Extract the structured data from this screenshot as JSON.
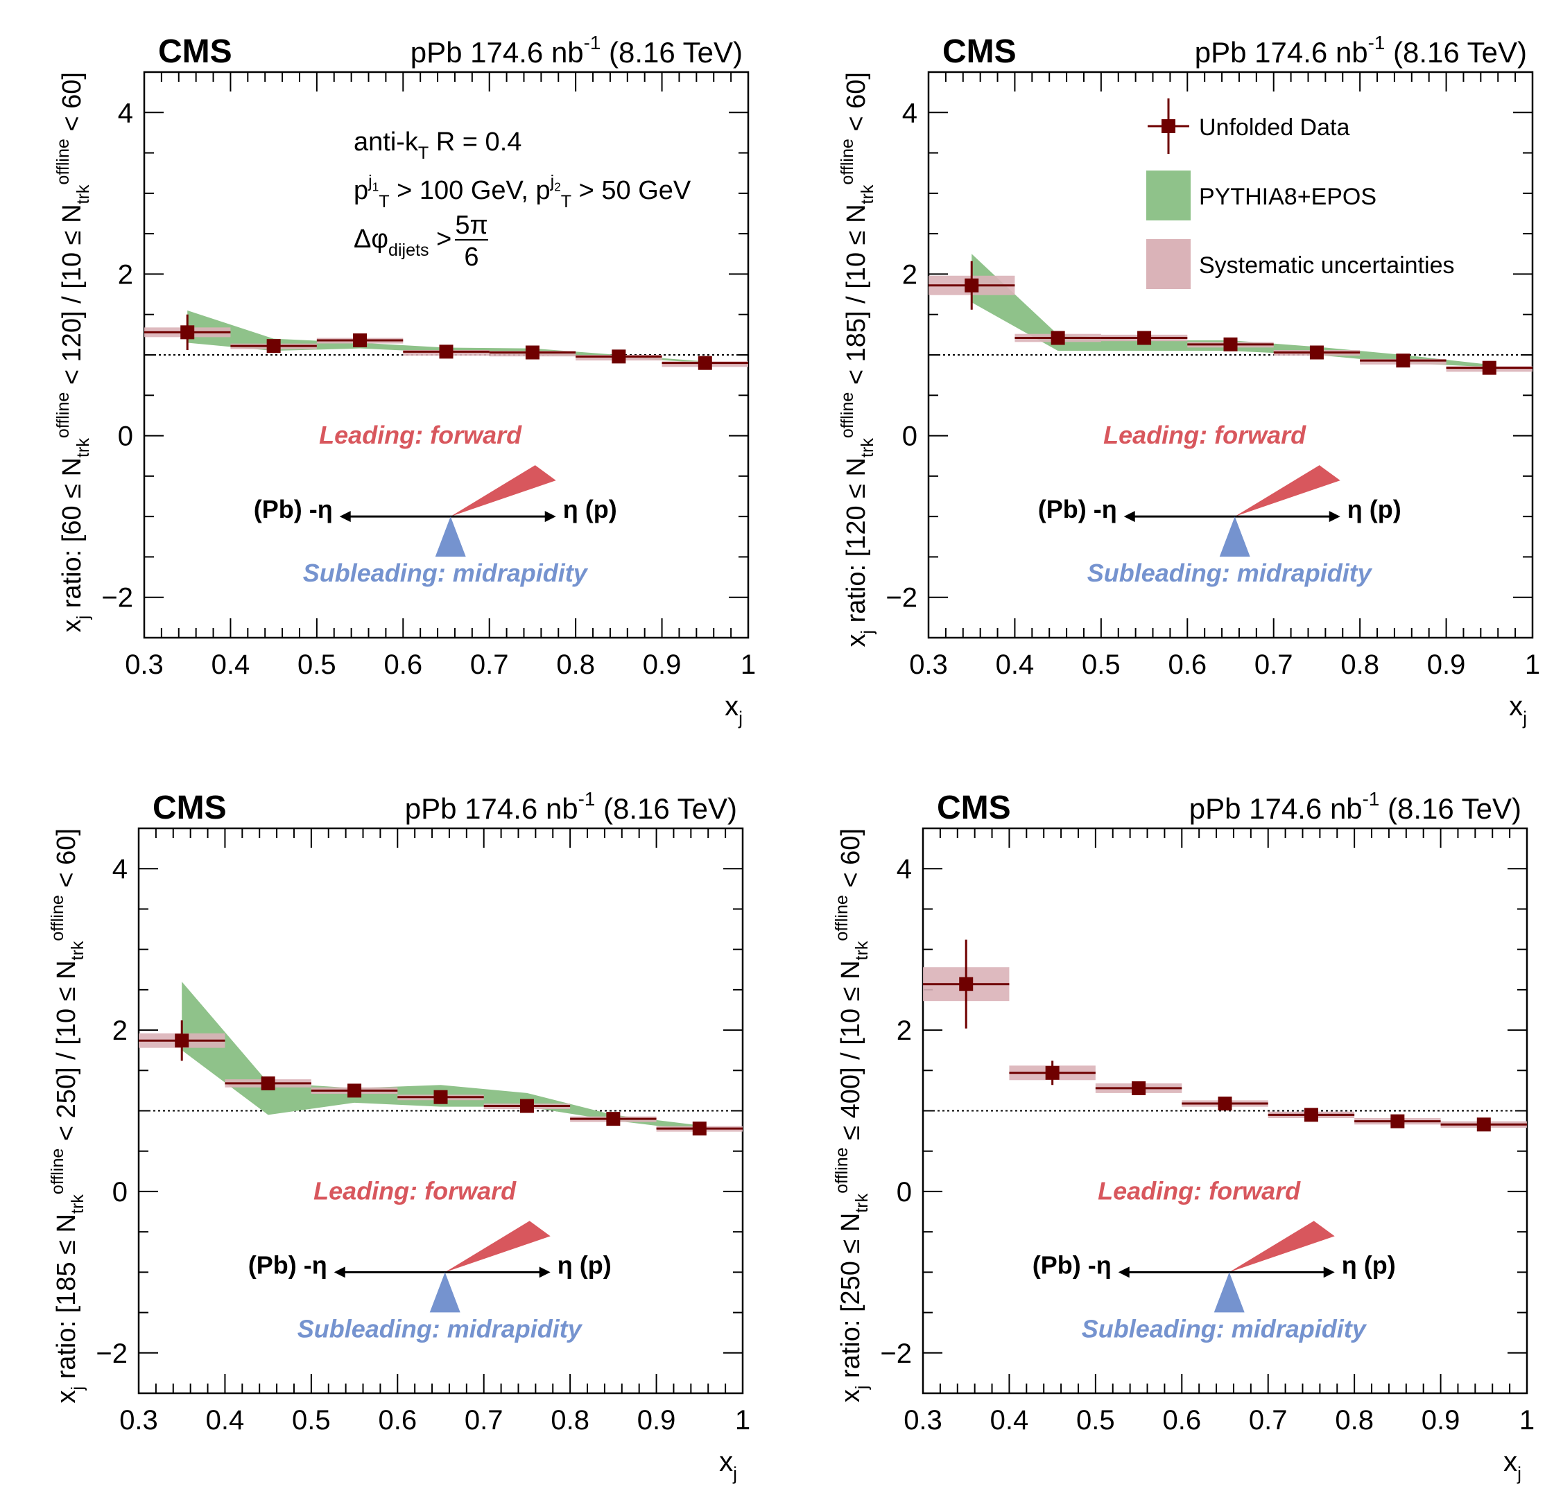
{
  "common": {
    "experiment": "CMS",
    "lumi_text": "pPb 174.6 nb",
    "lumi_exp": "-1",
    "energy": "(8.16 TeV)",
    "xlabel": "x",
    "xlabel_sub": "j",
    "ylabel_prefix": "x",
    "ylabel_prefix_sub": "j",
    "ylabel_ratio": " ratio: [",
    "ylabel_denom": " / [10 ≤ N",
    "ylabel_sub": "trk",
    "ylabel_sup": "offline",
    "ylabel_close": " < 60]",
    "leading_label": "Leading: forward",
    "subleading_label": "Subleading: midrapidity",
    "left_direction": "(Pb) -η",
    "right_direction": "η (p)",
    "jet_text": {
      "algo": "anti-k",
      "algo_sub": "T",
      "algo_rest": " R = 0.4",
      "pt_p": "p",
      "pt_sub": "T",
      "pt_sup1": "j",
      "pt_sup1_sub": "1",
      "pt_rest1": " > 100 GeV, ",
      "pt_sup2": "j",
      "pt_sup2_sub": "2",
      "pt_rest2": " > 50 GeV",
      "dphi": "Δφ",
      "dphi_sub": "dijets",
      "dphi_gt": " >",
      "frac_num": "5π",
      "frac_den": "6"
    },
    "legend": [
      {
        "label": "Unfolded Data",
        "kind": "data"
      },
      {
        "label": "PYTHIA8+EPOS",
        "kind": "model"
      },
      {
        "label": "Systematic uncertainties",
        "kind": "syst"
      }
    ],
    "colors": {
      "data": "#6f0000",
      "model": "#8fc28a",
      "syst": "#dab3b8",
      "leading": "#d8575d",
      "subleading": "#7593cf"
    }
  },
  "chart_data": [
    {
      "type": "scatter",
      "mult_label": "60 ≤ N",
      "mult_close": " < 120]",
      "x": [
        0.35,
        0.45,
        0.55,
        0.65,
        0.75,
        0.85,
        0.95
      ],
      "y": [
        1.28,
        1.11,
        1.18,
        1.04,
        1.03,
        0.98,
        0.9
      ],
      "stat_err": [
        0.22,
        0.05,
        0.04,
        0.03,
        0.03,
        0.03,
        0.03
      ],
      "syst_err": [
        0.06,
        0.03,
        0.03,
        0.02,
        0.02,
        0.02,
        0.02
      ],
      "model_lo": [
        1.15,
        1.05,
        1.08,
        1.03,
        1.0,
        0.97,
        0.9
      ],
      "model_hi": [
        1.55,
        1.2,
        1.15,
        1.09,
        1.08,
        1.0,
        0.92
      ],
      "xlim": [
        0.3,
        1.0
      ],
      "ylim": [
        -2.5,
        4.5
      ],
      "xticks": [
        0.3,
        0.4,
        0.5,
        0.6,
        0.7,
        0.8,
        0.9,
        1.0
      ],
      "xtick_labels": [
        "0.3",
        "0.4",
        "0.5",
        "0.6",
        "0.7",
        "0.8",
        "0.9",
        "1"
      ],
      "yticks": [
        -2,
        0,
        2,
        4
      ],
      "ytick_labels": [
        "−2",
        "0",
        "2",
        "4"
      ],
      "reference_line": 1.0,
      "show_jet_text": true,
      "show_legend": false
    },
    {
      "type": "scatter",
      "mult_label": "120 ≤ N",
      "mult_close": " < 185]",
      "x": [
        0.35,
        0.45,
        0.55,
        0.65,
        0.75,
        0.85,
        0.95
      ],
      "y": [
        1.86,
        1.21,
        1.21,
        1.13,
        1.03,
        0.93,
        0.84
      ],
      "stat_err": [
        0.3,
        0.06,
        0.05,
        0.04,
        0.03,
        0.03,
        0.03
      ],
      "syst_err": [
        0.12,
        0.05,
        0.04,
        0.03,
        0.03,
        0.02,
        0.02
      ],
      "model_lo": [
        1.65,
        1.05,
        1.05,
        1.05,
        1.0,
        0.9,
        0.85
      ],
      "model_hi": [
        2.25,
        1.25,
        1.18,
        1.18,
        1.1,
        1.0,
        0.88
      ],
      "xlim": [
        0.3,
        1.0
      ],
      "ylim": [
        -2.5,
        4.5
      ],
      "xticks": [
        0.3,
        0.4,
        0.5,
        0.6,
        0.7,
        0.8,
        0.9,
        1.0
      ],
      "xtick_labels": [
        "0.3",
        "0.4",
        "0.5",
        "0.6",
        "0.7",
        "0.8",
        "0.9",
        "1"
      ],
      "yticks": [
        -2,
        0,
        2,
        4
      ],
      "ytick_labels": [
        "−2",
        "0",
        "2",
        "4"
      ],
      "reference_line": 1.0,
      "show_jet_text": false,
      "show_legend": true
    },
    {
      "type": "scatter",
      "mult_label": "185 ≤ N",
      "mult_close": " < 250]",
      "x": [
        0.35,
        0.45,
        0.55,
        0.65,
        0.75,
        0.85,
        0.95
      ],
      "y": [
        1.87,
        1.34,
        1.25,
        1.17,
        1.06,
        0.9,
        0.78
      ],
      "stat_err": [
        0.25,
        0.06,
        0.05,
        0.05,
        0.04,
        0.04,
        0.03
      ],
      "syst_err": [
        0.09,
        0.05,
        0.04,
        0.03,
        0.03,
        0.03,
        0.03
      ],
      "model_lo": [
        1.75,
        0.95,
        1.1,
        1.05,
        1.05,
        0.88,
        0.75
      ],
      "model_hi": [
        2.6,
        1.35,
        1.28,
        1.32,
        1.22,
        0.95,
        0.82
      ],
      "xlim": [
        0.3,
        1.0
      ],
      "ylim": [
        -2.5,
        4.5
      ],
      "xticks": [
        0.3,
        0.4,
        0.5,
        0.6,
        0.7,
        0.8,
        0.9,
        1.0
      ],
      "xtick_labels": [
        "0.3",
        "0.4",
        "0.5",
        "0.6",
        "0.7",
        "0.8",
        "0.9",
        "1"
      ],
      "yticks": [
        -2,
        0,
        2,
        4
      ],
      "ytick_labels": [
        "−2",
        "0",
        "2",
        "4"
      ],
      "reference_line": 1.0,
      "show_jet_text": false,
      "show_legend": false
    },
    {
      "type": "scatter",
      "mult_label": "250 ≤ N",
      "mult_close": " ≤ 400]",
      "x": [
        0.35,
        0.45,
        0.55,
        0.65,
        0.75,
        0.85,
        0.95
      ],
      "y": [
        2.57,
        1.47,
        1.28,
        1.09,
        0.95,
        0.87,
        0.83
      ],
      "stat_err": [
        0.55,
        0.15,
        0.07,
        0.05,
        0.04,
        0.04,
        0.04
      ],
      "syst_err": [
        0.21,
        0.09,
        0.06,
        0.04,
        0.04,
        0.04,
        0.04
      ],
      "xlim": [
        0.3,
        1.0
      ],
      "ylim": [
        -2.5,
        4.5
      ],
      "xticks": [
        0.3,
        0.4,
        0.5,
        0.6,
        0.7,
        0.8,
        0.9,
        1.0
      ],
      "xtick_labels": [
        "0.3",
        "0.4",
        "0.5",
        "0.6",
        "0.7",
        "0.8",
        "0.9",
        "1"
      ],
      "yticks": [
        -2,
        0,
        2,
        4
      ],
      "ytick_labels": [
        "−2",
        "0",
        "2",
        "4"
      ],
      "reference_line": 1.0,
      "show_jet_text": false,
      "show_legend": false
    }
  ]
}
